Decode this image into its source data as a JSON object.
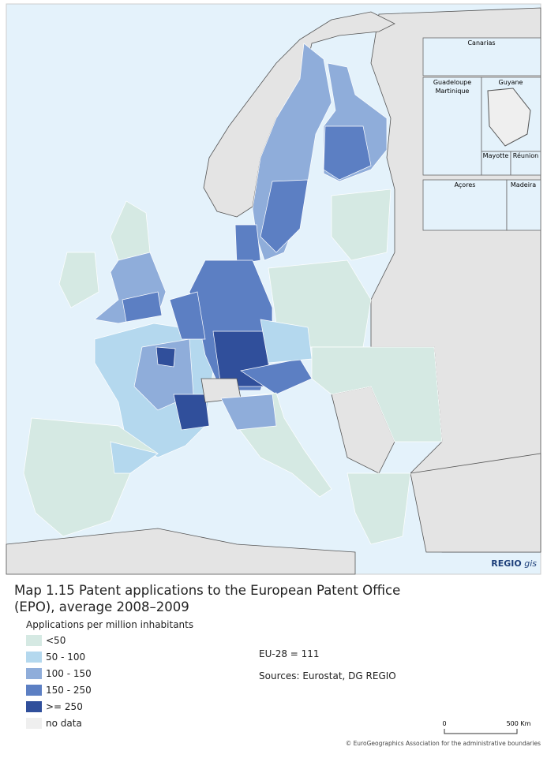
{
  "map": {
    "insets": [
      "Canarias",
      "Guadeloupe",
      "Martinique",
      "Guyane",
      "Mayotte",
      "Réunion",
      "Açores",
      "Madeira"
    ],
    "logo": {
      "bold": "REGIO",
      "italic": "gis"
    }
  },
  "caption": {
    "title": "Map 1.15 Patent applications to the European Patent Office (EPO), average 2008–2009",
    "legend_title": "Applications per million inhabitants",
    "legend": [
      {
        "label": "<50",
        "color": "#d5e9e3"
      },
      {
        "label": "50 - 100",
        "color": "#b4d8ee"
      },
      {
        "label": "100 - 150",
        "color": "#8fadda"
      },
      {
        "label": "150 - 250",
        "color": "#5c7fc3"
      },
      {
        "label": ">= 250",
        "color": "#304f9b"
      },
      {
        "label": "no data",
        "color": "#efefef"
      }
    ],
    "eu_average": "EU-28 = 111",
    "sources": "Sources: Eurostat, DG REGIO",
    "scale": [
      "0",
      "500 Km"
    ],
    "copyright": "© EuroGeographics Association for the administrative boundaries"
  }
}
